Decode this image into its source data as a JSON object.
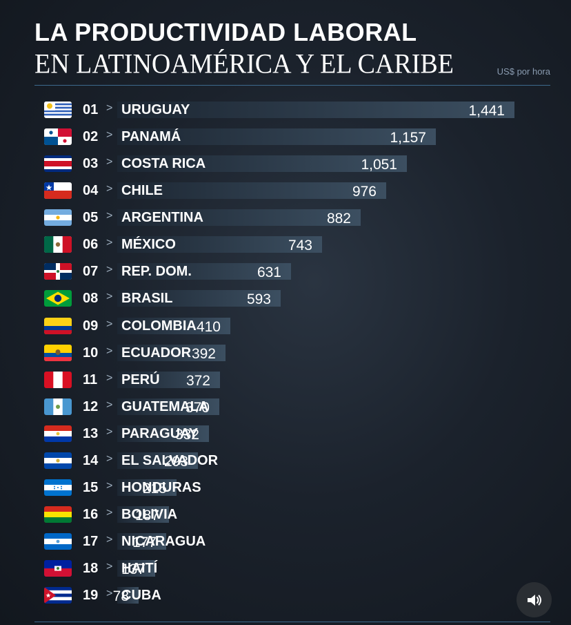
{
  "title_line1": "LA PRODUCTIVIDAD LABORAL",
  "title_line2": "EN LATINOAMÉRICA Y EL CARIBE",
  "unit": "US$ por hora",
  "arrow_glyph": ">",
  "sound_icon": "speaker-volume-icon",
  "chart_data": {
    "type": "bar",
    "orientation": "horizontal",
    "title": "LA PRODUCTIVIDAD LABORAL EN LATINOAMÉRICA Y EL CARIBE",
    "unit": "US$ por hora",
    "rows": [
      {
        "rank": "01",
        "country": "URUGUAY",
        "label": "1,441",
        "value": 1441,
        "flag": "uruguay"
      },
      {
        "rank": "02",
        "country": "PANAMÁ",
        "label": "1,157",
        "value": 1157,
        "flag": "panama"
      },
      {
        "rank": "03",
        "country": "COSTA RICA",
        "label": "1,051",
        "value": 1051,
        "flag": "costa-rica"
      },
      {
        "rank": "04",
        "country": "CHILE",
        "label": "976",
        "value": 976,
        "flag": "chile"
      },
      {
        "rank": "05",
        "country": "ARGENTINA",
        "label": "882",
        "value": 882,
        "flag": "argentina"
      },
      {
        "rank": "06",
        "country": "MÉXICO",
        "label": "743",
        "value": 743,
        "flag": "mexico"
      },
      {
        "rank": "07",
        "country": "REP. DOM.",
        "label": "631",
        "value": 631,
        "flag": "dominican-republic"
      },
      {
        "rank": "08",
        "country": "BRASIL",
        "label": "593",
        "value": 593,
        "flag": "brazil"
      },
      {
        "rank": "09",
        "country": "COLOMBIA",
        "label": "410",
        "value": 410,
        "flag": "colombia"
      },
      {
        "rank": "10",
        "country": "ECUADOR",
        "label": "392",
        "value": 392,
        "flag": "ecuador"
      },
      {
        "rank": "11",
        "country": "PERÚ",
        "label": "372",
        "value": 372,
        "flag": "peru"
      },
      {
        "rank": "12",
        "country": "GUATEMALA",
        "label": "370",
        "value": 370,
        "flag": "guatemala"
      },
      {
        "rank": "13",
        "country": "PARAGUAY",
        "label": "332",
        "value": 332,
        "flag": "paraguay"
      },
      {
        "rank": "14",
        "country": "EL SALVADOR",
        "label": "293",
        "value": 293,
        "flag": "el-salvador"
      },
      {
        "rank": "15",
        "country": "HONDURAS",
        "label": "215",
        "value": 215,
        "flag": "honduras"
      },
      {
        "rank": "16",
        "country": "BOLIVIA",
        "label": "187",
        "value": 187,
        "flag": "bolivia"
      },
      {
        "rank": "17",
        "country": "NICARAGUA",
        "label": "177",
        "value": 177,
        "flag": "nicaragua"
      },
      {
        "rank": "18",
        "country": "HAITÍ",
        "label": "137",
        "value": 137,
        "flag": "haiti"
      },
      {
        "rank": "19",
        "country": "CUBA",
        "label": "78",
        "value": 78,
        "flag": "cuba"
      }
    ]
  }
}
